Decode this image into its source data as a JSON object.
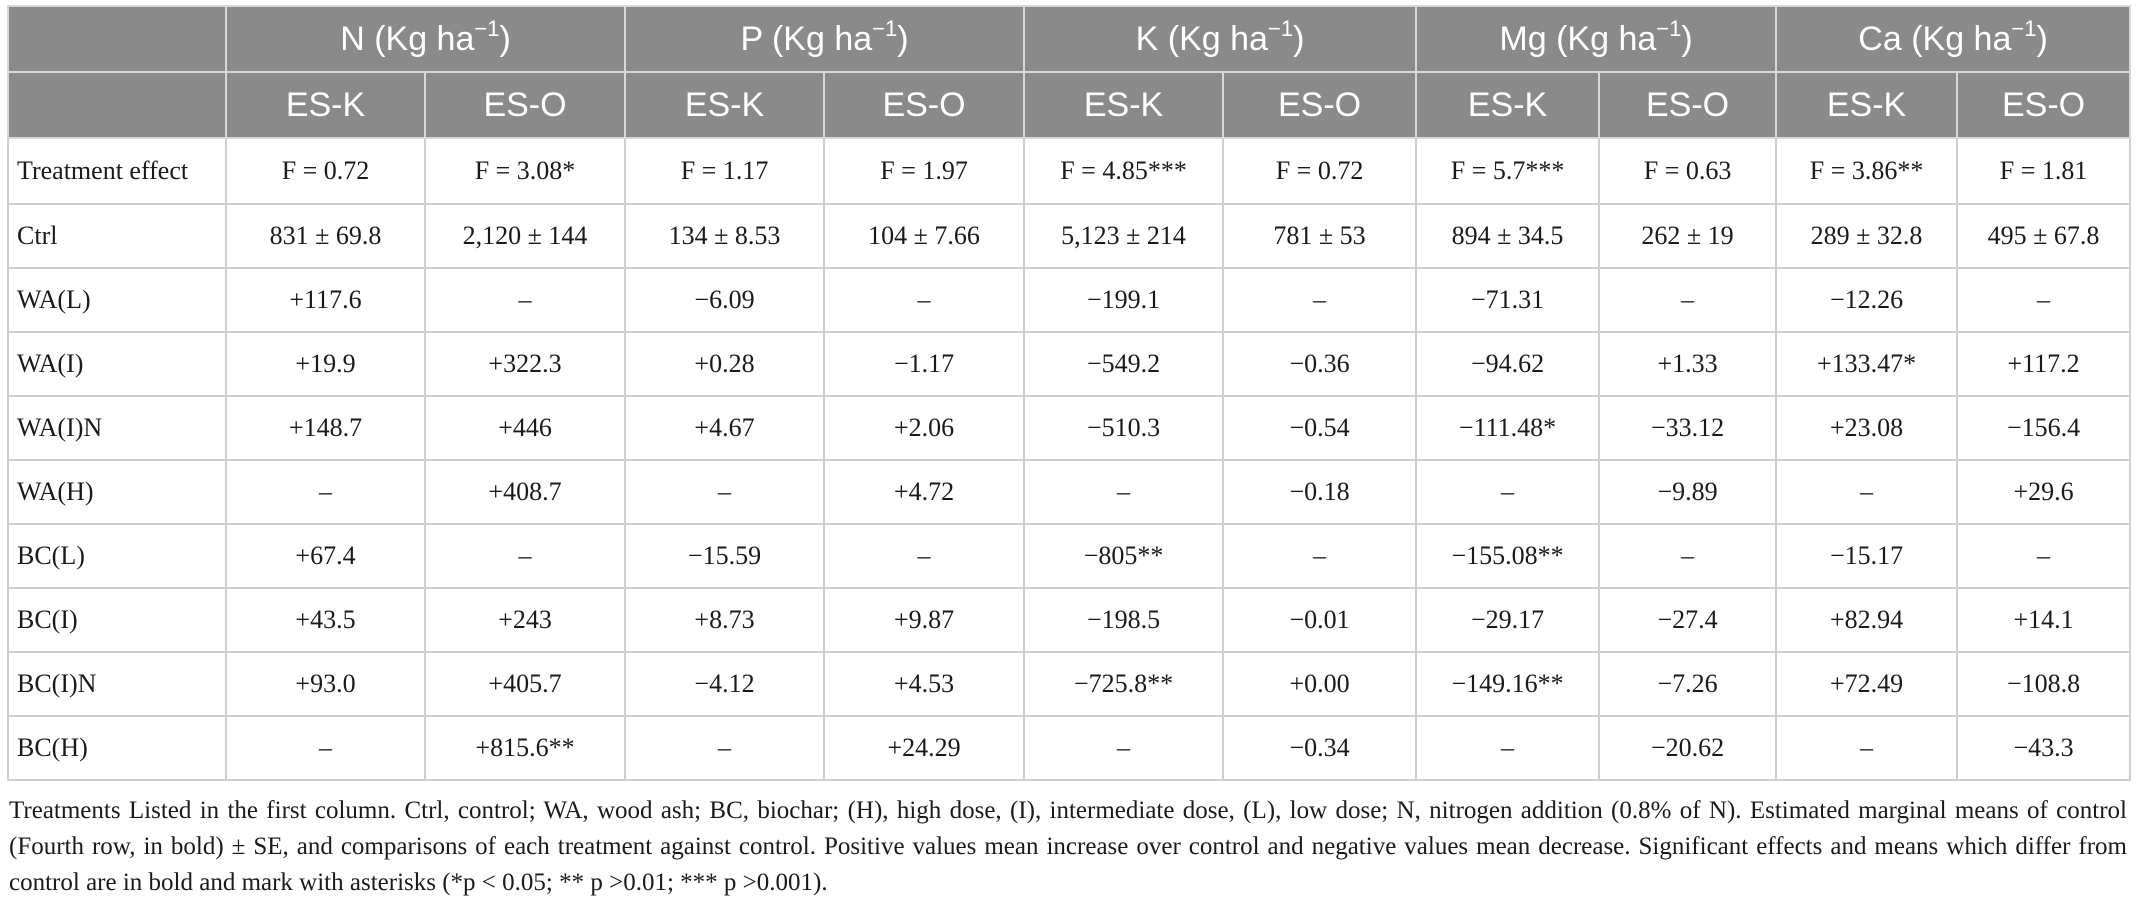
{
  "table": {
    "nutrients": [
      {
        "name": "N (Kg ha",
        "exp": "−1",
        "close": ")"
      },
      {
        "name": "P (Kg ha",
        "exp": "−1",
        "close": ")"
      },
      {
        "name": "K (Kg ha",
        "exp": "−1",
        "close": ")"
      },
      {
        "name": "Mg (Kg ha",
        "exp": "−1",
        "close": ")"
      },
      {
        "name": "Ca (Kg ha",
        "exp": "−1",
        "close": ")"
      }
    ],
    "subheaders": [
      "ES-K",
      "ES-O",
      "ES-K",
      "ES-O",
      "ES-K",
      "ES-O",
      "ES-K",
      "ES-O",
      "ES-K",
      "ES-O"
    ],
    "rows": [
      {
        "label": "Treatment effect",
        "cells": [
          "F = 0.72",
          "F = 3.08*",
          "F = 1.17",
          "F = 1.97",
          "F = 4.85***",
          "F = 0.72",
          "F = 5.7***",
          "F = 0.63",
          "F = 3.86**",
          "F = 1.81"
        ]
      },
      {
        "label": "Ctrl",
        "cells": [
          "831 ± 69.8",
          "2,120 ± 144",
          "134 ± 8.53",
          "104 ± 7.66",
          "5,123 ± 214",
          "781 ± 53",
          "894 ± 34.5",
          "262 ± 19",
          "289 ± 32.8",
          "495 ± 67.8"
        ]
      },
      {
        "label": "WA(L)",
        "cells": [
          "+117.6",
          "–",
          "−6.09",
          "–",
          "−199.1",
          "–",
          "−71.31",
          "–",
          "−12.26",
          "–"
        ]
      },
      {
        "label": "WA(I)",
        "cells": [
          "+19.9",
          "+322.3",
          "+0.28",
          "−1.17",
          "−549.2",
          "−0.36",
          "−94.62",
          "+1.33",
          "+133.47*",
          "+117.2"
        ]
      },
      {
        "label": "WA(I)N",
        "cells": [
          "+148.7",
          "+446",
          "+4.67",
          "+2.06",
          "−510.3",
          "−0.54",
          "−111.48*",
          "−33.12",
          "+23.08",
          "−156.4"
        ]
      },
      {
        "label": "WA(H)",
        "cells": [
          "–",
          "+408.7",
          "–",
          "+4.72",
          "–",
          "−0.18",
          "–",
          "−9.89",
          "–",
          "+29.6"
        ]
      },
      {
        "label": "BC(L)",
        "cells": [
          "+67.4",
          "–",
          "−15.59",
          "–",
          "−805**",
          "–",
          "−155.08**",
          "–",
          "−15.17",
          "–"
        ]
      },
      {
        "label": "BC(I)",
        "cells": [
          "+43.5",
          "+243",
          "+8.73",
          "+9.87",
          "−198.5",
          "−0.01",
          "−29.17",
          "−27.4",
          "+82.94",
          "+14.1"
        ]
      },
      {
        "label": "BC(I)N",
        "cells": [
          "+93.0",
          "+405.7",
          "−4.12",
          "+4.53",
          "−725.8**",
          "+0.00",
          "−149.16**",
          "−7.26",
          "+72.49",
          "−108.8"
        ]
      },
      {
        "label": "BC(H)",
        "cells": [
          "–",
          "+815.6**",
          "–",
          "+24.29",
          "–",
          "−0.34",
          "–",
          "−20.62",
          "–",
          "−43.3"
        ]
      }
    ]
  },
  "footnote": {
    "text": "Treatments Listed in the first column. Ctrl, control; WA, wood ash; BC, biochar; (H), high dose, (I), intermediate dose, (L), low dose; N, nitrogen addition (0.8% of N). Estimated marginal means of control (Fourth row, in bold) ± SE, and comparisons of each treatment against control. Positive values mean increase over control and negative values mean decrease. Significant effects and means which differ from control are in bold and mark with asterisks (*p < 0.05; ** p >0.01; *** p >0.001)."
  },
  "colors": {
    "header_bg": "#8a8a8a",
    "header_text": "#ffffff",
    "grid": "#cfcfcf"
  }
}
